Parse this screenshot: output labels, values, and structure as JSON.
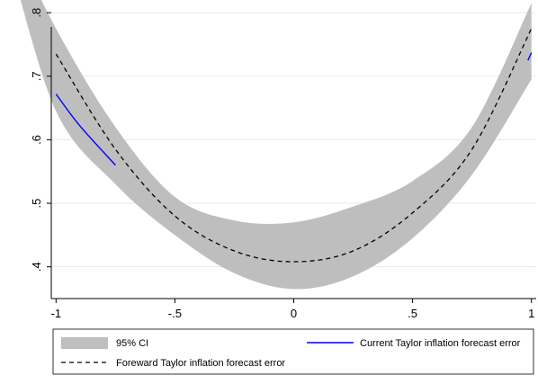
{
  "chart_data": {
    "type": "line",
    "xlim": [
      -1.02,
      1.02
    ],
    "ylim": [
      0.35,
      0.82
    ],
    "xticks": [
      {
        "value": -1,
        "label": "-1"
      },
      {
        "value": -0.5,
        "label": "-.5"
      },
      {
        "value": 0,
        "label": "0"
      },
      {
        "value": 0.5,
        "label": ".5"
      },
      {
        "value": 1,
        "label": "1"
      }
    ],
    "yticks": [
      {
        "value": 0.4,
        "label": ".4"
      },
      {
        "value": 0.5,
        "label": ".5"
      },
      {
        "value": 0.6,
        "label": ".6"
      },
      {
        "value": 0.7,
        "label": ".7"
      },
      {
        "value": 0.8,
        "label": ".8"
      }
    ],
    "grid": true,
    "legend_position": "bottom",
    "colors": {
      "ci_band": "#bebebe",
      "current": "#0000ff",
      "forward": "#000000",
      "grid": "#eaeaea"
    },
    "ci_band": {
      "name": "95% CI",
      "x": [
        -1.2,
        -1.0,
        -0.75,
        -0.5,
        -0.25,
        0,
        0.25,
        0.5,
        0.75,
        1.0
      ],
      "lower": [
        0.89,
        0.645,
        0.53,
        0.45,
        0.39,
        0.365,
        0.385,
        0.445,
        0.545,
        0.695
      ],
      "upper": [
        0.93,
        0.775,
        0.62,
        0.51,
        0.473,
        0.47,
        0.495,
        0.535,
        0.62,
        0.815
      ]
    },
    "series": [
      {
        "name": "Current Taylor inflation forecast error",
        "style": "solid",
        "segments": [
          {
            "x": [
              -1.0,
              -0.9,
              -0.75
            ],
            "y": [
              0.672,
              0.622,
              0.56
            ]
          },
          {
            "x": [
              0.985,
              1.0
            ],
            "y": [
              0.725,
              0.737
            ]
          }
        ]
      },
      {
        "name": "Foreward Taylor inflation forecast error",
        "style": "dashed",
        "x": [
          -1.0,
          -0.75,
          -0.5,
          -0.25,
          0,
          0.25,
          0.5,
          0.75,
          1.0
        ],
        "y": [
          0.735,
          0.585,
          0.48,
          0.425,
          0.408,
          0.425,
          0.485,
          0.585,
          0.775
        ]
      }
    ],
    "legend": {
      "ci_label": "95% CI",
      "current_label": "Current Taylor inflation forecast error",
      "forward_label": "Foreward Taylor inflation forecast error"
    }
  }
}
